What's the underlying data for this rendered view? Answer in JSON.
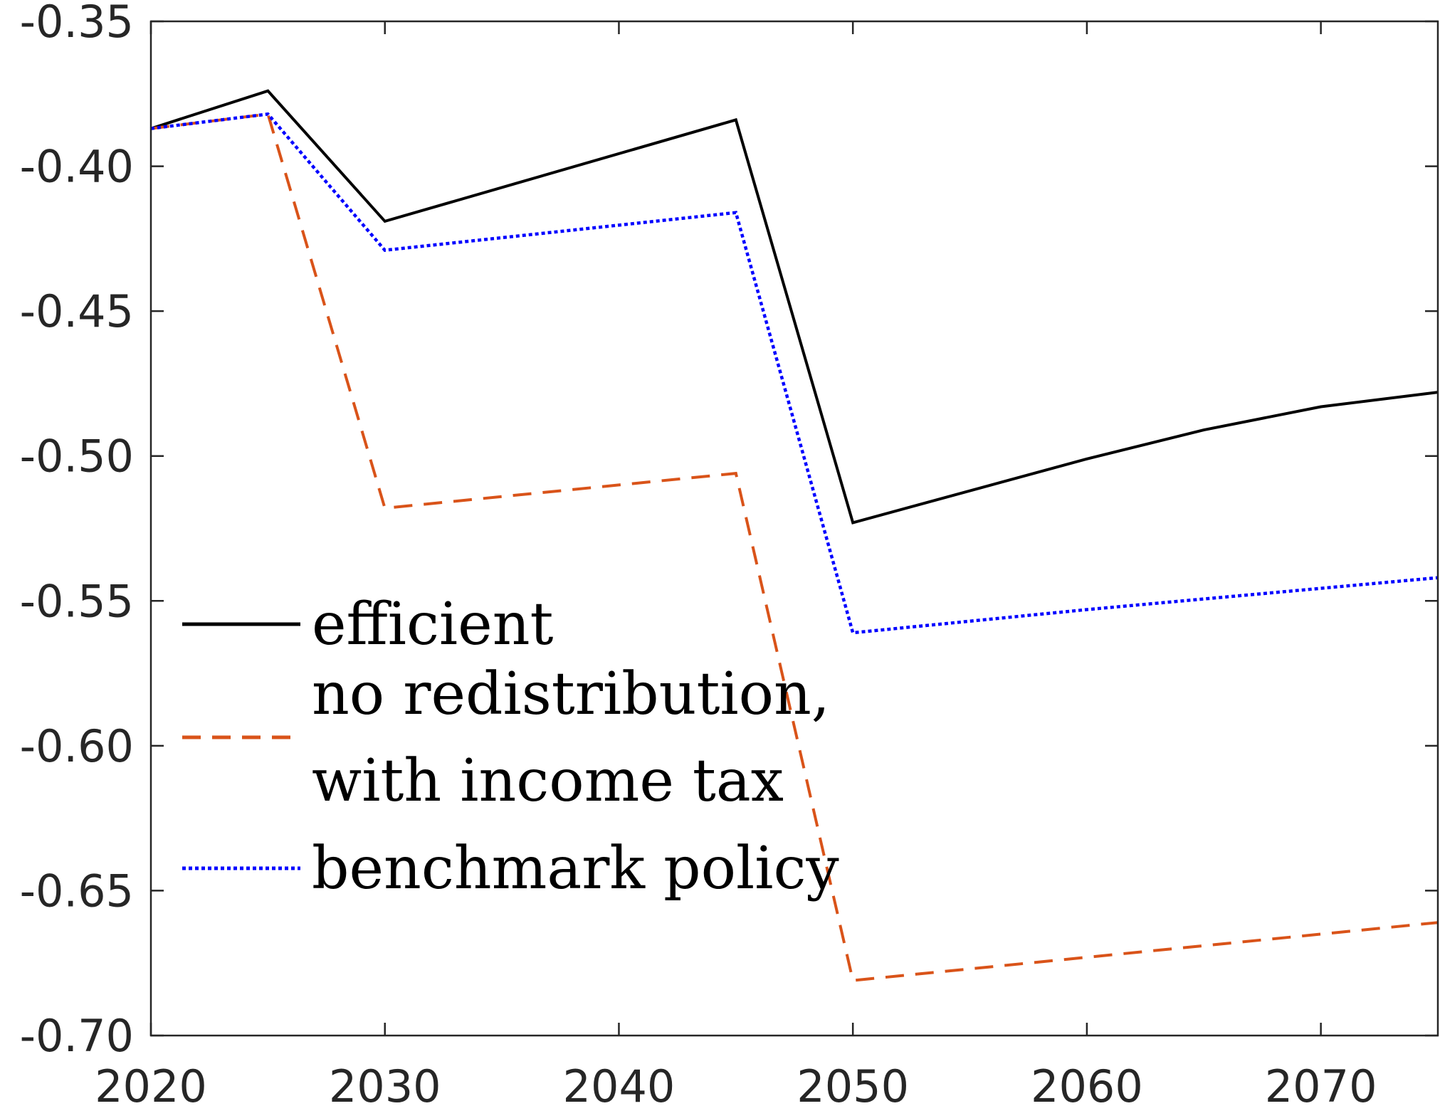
{
  "chart_data": {
    "type": "line",
    "title": "",
    "xlabel": "",
    "ylabel": "",
    "xlim": [
      2020,
      2075
    ],
    "ylim": [
      -0.7,
      -0.35
    ],
    "xticks": [
      2020,
      2030,
      2040,
      2050,
      2060,
      2070
    ],
    "xtick_labels": [
      "2020",
      "2030",
      "2040",
      "2050",
      "2060",
      "2070"
    ],
    "yticks": [
      -0.35,
      -0.4,
      -0.45,
      -0.5,
      -0.55,
      -0.6,
      -0.65,
      -0.7
    ],
    "ytick_labels": [
      "-0.35",
      "-0.40",
      "-0.45",
      "-0.50",
      "-0.55",
      "-0.60",
      "-0.65",
      "-0.70"
    ],
    "grid": false,
    "legend_position": "bottom-left",
    "series": [
      {
        "name": "efficient",
        "color": "#000000",
        "style": "solid",
        "points": [
          [
            2020,
            -0.387
          ],
          [
            2025,
            -0.374
          ],
          [
            2030,
            -0.419
          ],
          [
            2045,
            -0.384
          ],
          [
            2050,
            -0.523
          ],
          [
            2060,
            -0.501
          ],
          [
            2065,
            -0.491
          ],
          [
            2070,
            -0.483
          ],
          [
            2075,
            -0.478
          ]
        ]
      },
      {
        "name": "no redistribution, with income tax",
        "color": "#d95319",
        "style": "dashed",
        "points": [
          [
            2020,
            -0.387
          ],
          [
            2025,
            -0.382
          ],
          [
            2030,
            -0.518
          ],
          [
            2045,
            -0.506
          ],
          [
            2050,
            -0.681
          ],
          [
            2075,
            -0.661
          ]
        ]
      },
      {
        "name": "benchmark policy",
        "color": "#0000ff",
        "style": "dotted",
        "points": [
          [
            2020,
            -0.387
          ],
          [
            2025,
            -0.382
          ],
          [
            2030,
            -0.429
          ],
          [
            2045,
            -0.416
          ],
          [
            2050,
            -0.561
          ],
          [
            2060,
            -0.553
          ],
          [
            2075,
            -0.542
          ]
        ]
      }
    ],
    "legend_lines": [
      [
        "efficient"
      ],
      [
        "no redistribution,",
        "with income tax"
      ],
      [
        "benchmark policy"
      ]
    ]
  }
}
